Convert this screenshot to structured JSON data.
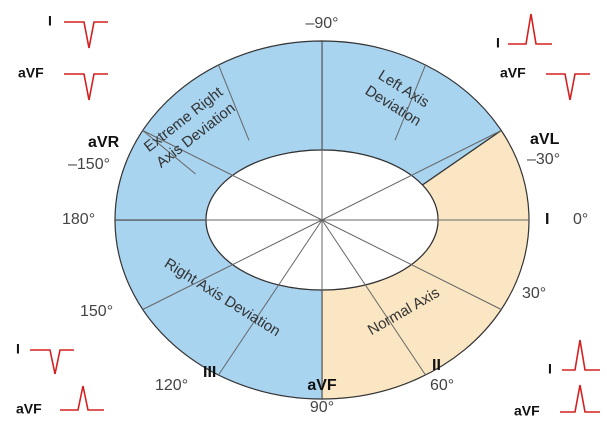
{
  "diagram": {
    "regions": [
      {
        "lines": [
          "Extreme Right",
          "Axis Deviation"
        ]
      },
      {
        "lines": [
          "Left Axis",
          "Deviation"
        ]
      },
      {
        "lines": [
          "Right Axis Deviation"
        ]
      },
      {
        "lines": [
          "Normal Axis"
        ]
      }
    ],
    "axis_labels": {
      "top": "–90°",
      "avl": {
        "lead": "aVL",
        "angle": "–30°"
      },
      "i": {
        "lead": "I",
        "angle": "0°"
      },
      "thirty": "30°",
      "ii": {
        "lead": "II",
        "angle": "60°"
      },
      "avf": {
        "lead": "aVF",
        "angle": "90°"
      },
      "iii": {
        "lead": "III",
        "angle": "120°"
      },
      "one_fifty": "150°",
      "one_eighty": "180°",
      "avr": {
        "lead": "aVR",
        "angle": "–150°"
      }
    },
    "corners": [
      {
        "lead1": "I",
        "lead2": "aVF"
      },
      {
        "lead1": "I",
        "lead2": "aVF"
      },
      {
        "lead1": "I",
        "lead2": "aVF"
      },
      {
        "lead1": "I",
        "lead2": "aVF"
      }
    ]
  }
}
